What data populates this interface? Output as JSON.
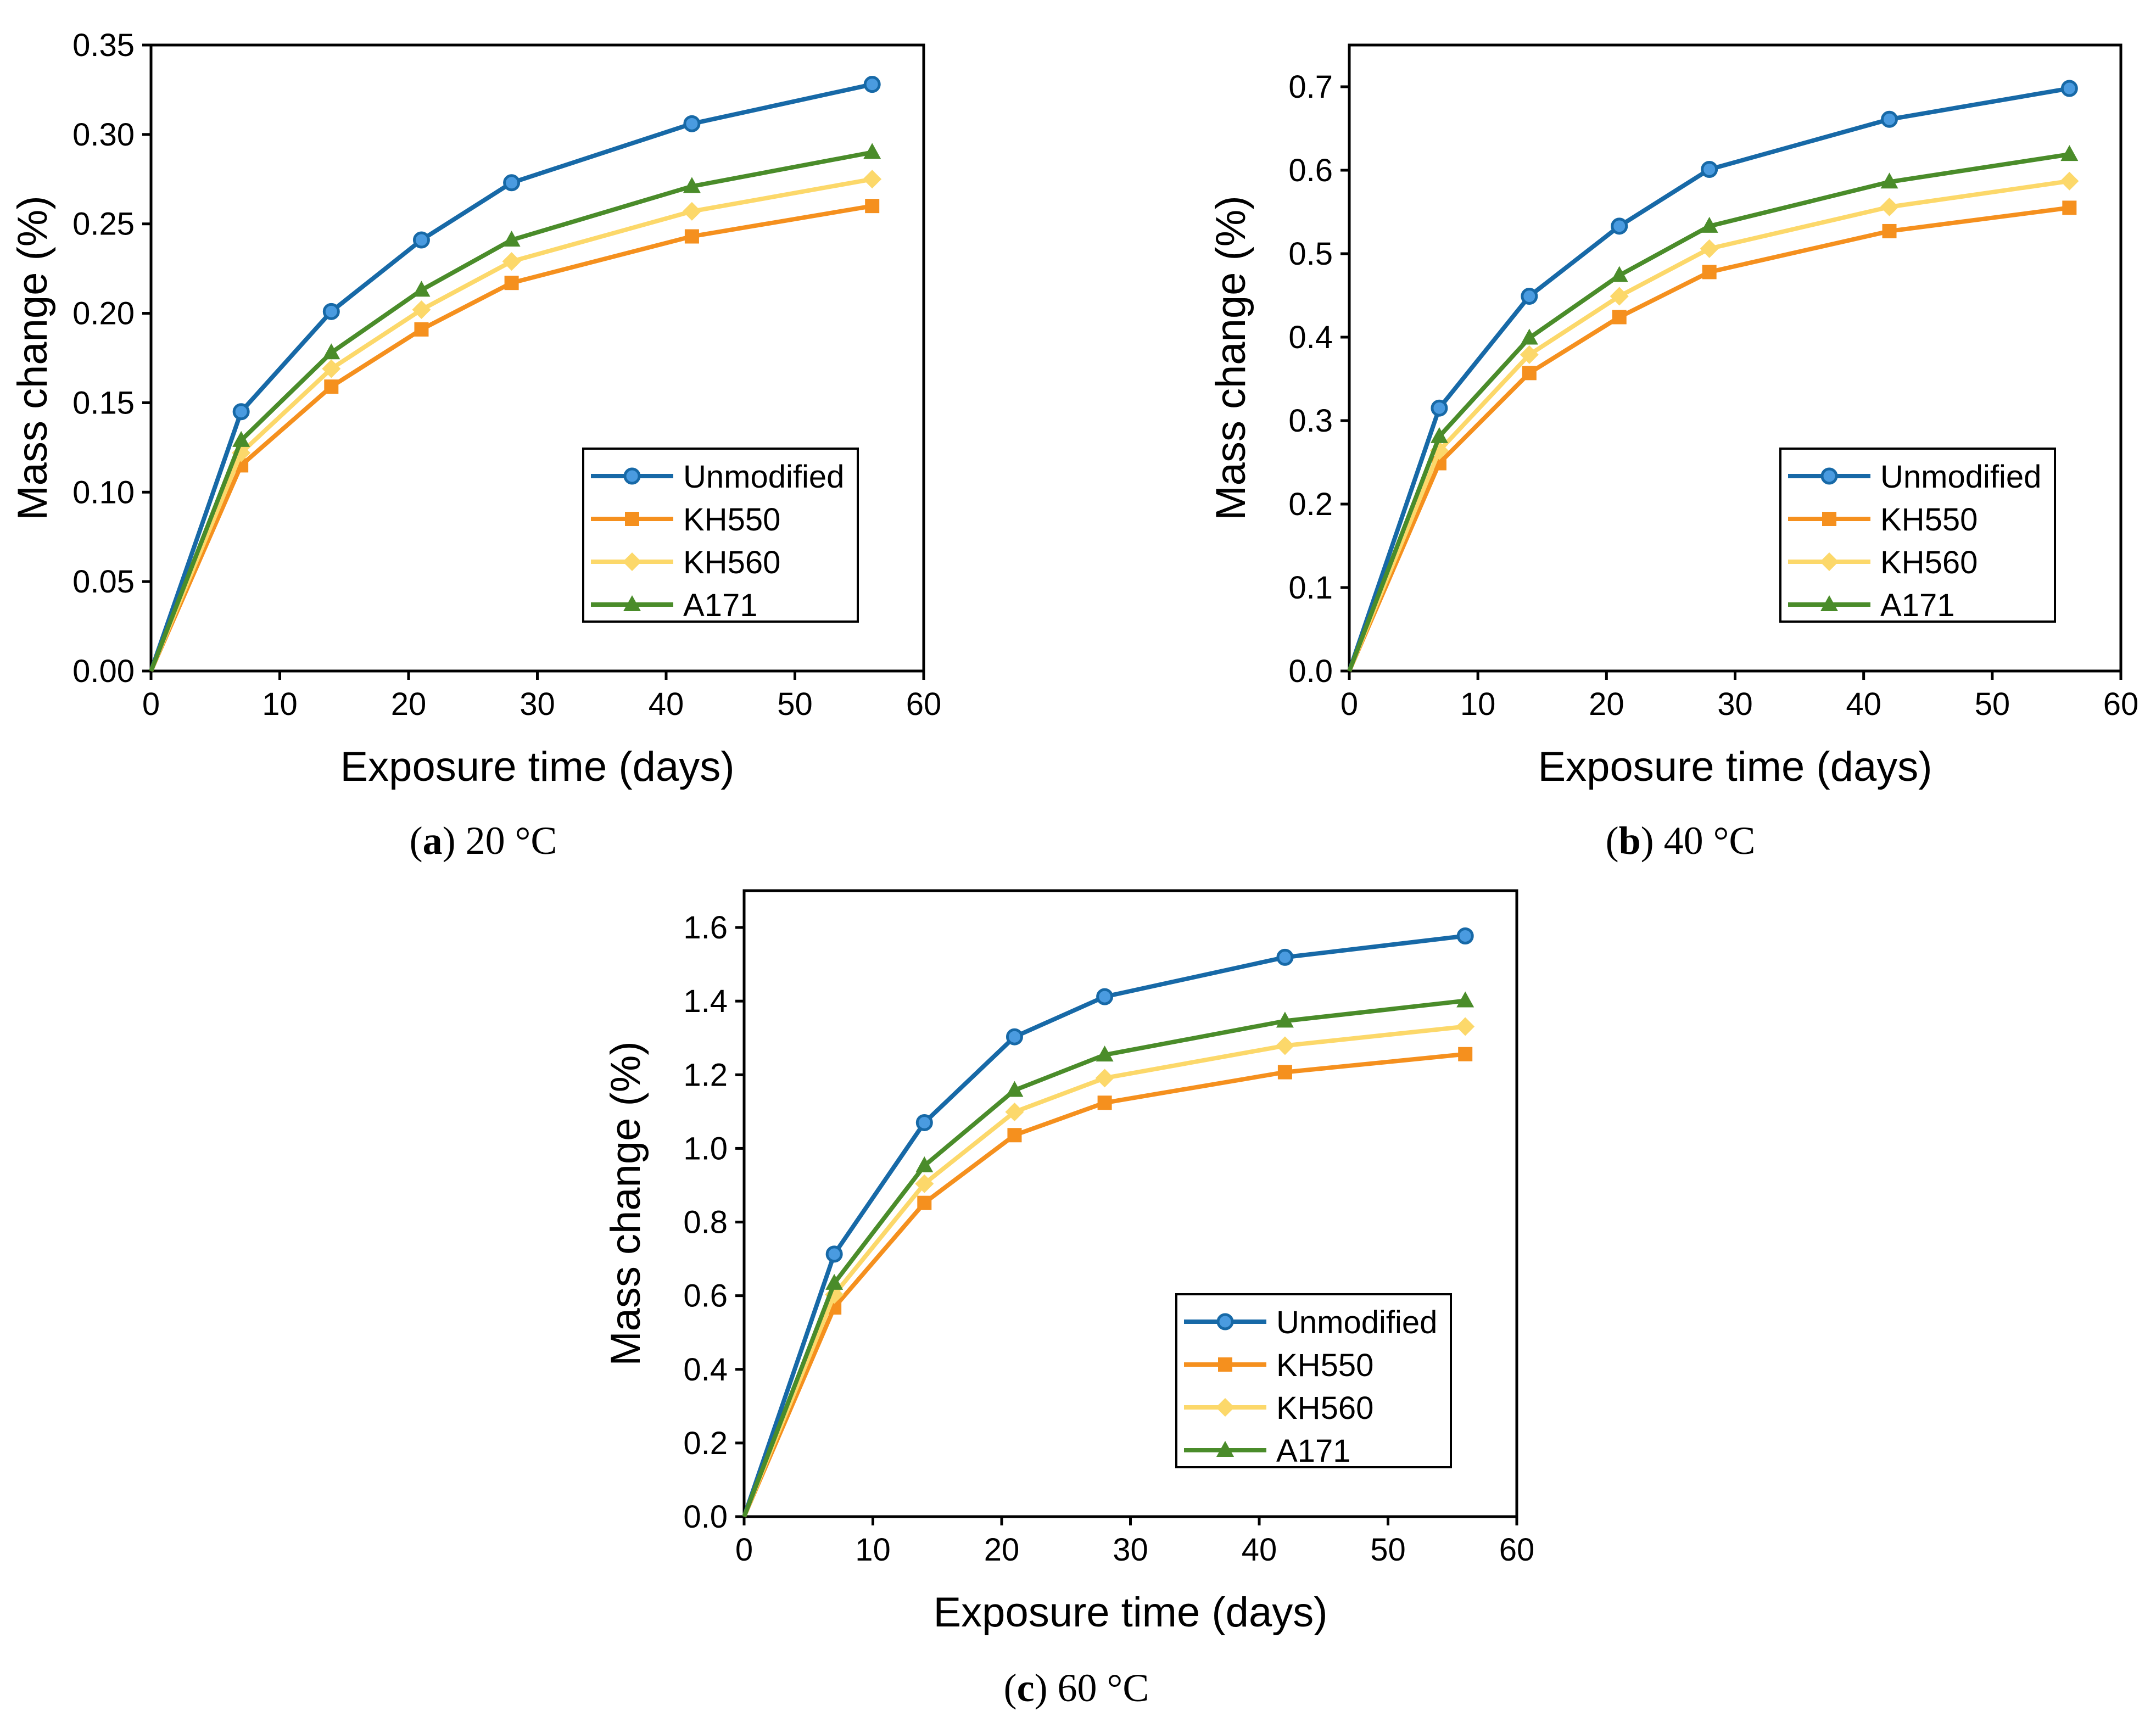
{
  "chart_data": [
    {
      "type": "line",
      "caption_letter": "a",
      "caption_text": "20 °C",
      "xlabel": "Exposure time (days)",
      "ylabel": "Mass change (%)",
      "xlim": [
        0,
        60
      ],
      "ylim": [
        0,
        0.35
      ],
      "xticks": [
        0,
        10,
        20,
        30,
        40,
        50,
        60
      ],
      "yticks": [
        0.0,
        0.05,
        0.1,
        0.15,
        0.2,
        0.25,
        0.3,
        0.35
      ],
      "ytick_decimals": 2,
      "legend_position": "lower-right",
      "x": [
        0,
        7,
        14,
        21,
        28,
        42,
        56
      ],
      "series": [
        {
          "name": "Unmodified",
          "values": [
            0,
            0.145,
            0.201,
            0.241,
            0.273,
            0.306,
            0.328
          ]
        },
        {
          "name": "KH550",
          "values": [
            0,
            0.115,
            0.159,
            0.191,
            0.217,
            0.243,
            0.26
          ]
        },
        {
          "name": "KH560",
          "values": [
            0,
            0.122,
            0.169,
            0.202,
            0.229,
            0.257,
            0.275
          ]
        },
        {
          "name": "A171",
          "values": [
            0,
            0.129,
            0.178,
            0.213,
            0.241,
            0.271,
            0.29
          ]
        }
      ]
    },
    {
      "type": "line",
      "caption_letter": "b",
      "caption_text": "40 °C",
      "xlabel": "Exposure time (days)",
      "ylabel": "Mass change (%)",
      "xlim": [
        0,
        60
      ],
      "ylim": [
        0,
        0.75
      ],
      "xticks": [
        0,
        10,
        20,
        30,
        40,
        50,
        60
      ],
      "yticks": [
        0.0,
        0.1,
        0.2,
        0.3,
        0.4,
        0.5,
        0.6,
        0.7
      ],
      "ytick_decimals": 1,
      "legend_position": "lower-right",
      "x": [
        0,
        7,
        14,
        21,
        28,
        42,
        56
      ],
      "series": [
        {
          "name": "Unmodified",
          "values": [
            0,
            0.315,
            0.449,
            0.533,
            0.601,
            0.661,
            0.698
          ]
        },
        {
          "name": "KH550",
          "values": [
            0,
            0.249,
            0.357,
            0.424,
            0.478,
            0.527,
            0.555
          ]
        },
        {
          "name": "KH560",
          "values": [
            0,
            0.264,
            0.379,
            0.449,
            0.506,
            0.556,
            0.587
          ]
        },
        {
          "name": "A171",
          "values": [
            0,
            0.281,
            0.399,
            0.474,
            0.533,
            0.586,
            0.619
          ]
        }
      ]
    },
    {
      "type": "line",
      "caption_letter": "c",
      "caption_text": "60 °C",
      "xlabel": "Exposure time (days)",
      "ylabel": "Mass change (%)",
      "xlim": [
        0,
        60
      ],
      "ylim": [
        0,
        1.7
      ],
      "xticks": [
        0,
        10,
        20,
        30,
        40,
        50,
        60
      ],
      "yticks": [
        0.0,
        0.2,
        0.4,
        0.6,
        0.8,
        1.0,
        1.2,
        1.4,
        1.6
      ],
      "ytick_decimals": 1,
      "legend_position": "lower-right",
      "x": [
        0,
        7,
        14,
        21,
        28,
        42,
        56
      ],
      "series": [
        {
          "name": "Unmodified",
          "values": [
            0,
            0.713,
            1.07,
            1.303,
            1.412,
            1.519,
            1.577
          ]
        },
        {
          "name": "KH550",
          "values": [
            0,
            0.568,
            0.852,
            1.036,
            1.124,
            1.207,
            1.256
          ]
        },
        {
          "name": "KH560",
          "values": [
            0,
            0.603,
            0.904,
            1.099,
            1.191,
            1.279,
            1.331
          ]
        },
        {
          "name": "A171",
          "values": [
            0,
            0.634,
            0.953,
            1.158,
            1.254,
            1.346,
            1.401
          ]
        }
      ]
    }
  ],
  "colors": {
    "Unmodified": "#1769a7",
    "KH550": "#f5901e",
    "KH560": "#fcd86a",
    "A171": "#4a8c2a"
  },
  "markers": {
    "Unmodified": "circle",
    "KH550": "square",
    "KH560": "diamond",
    "A171": "triangle"
  }
}
